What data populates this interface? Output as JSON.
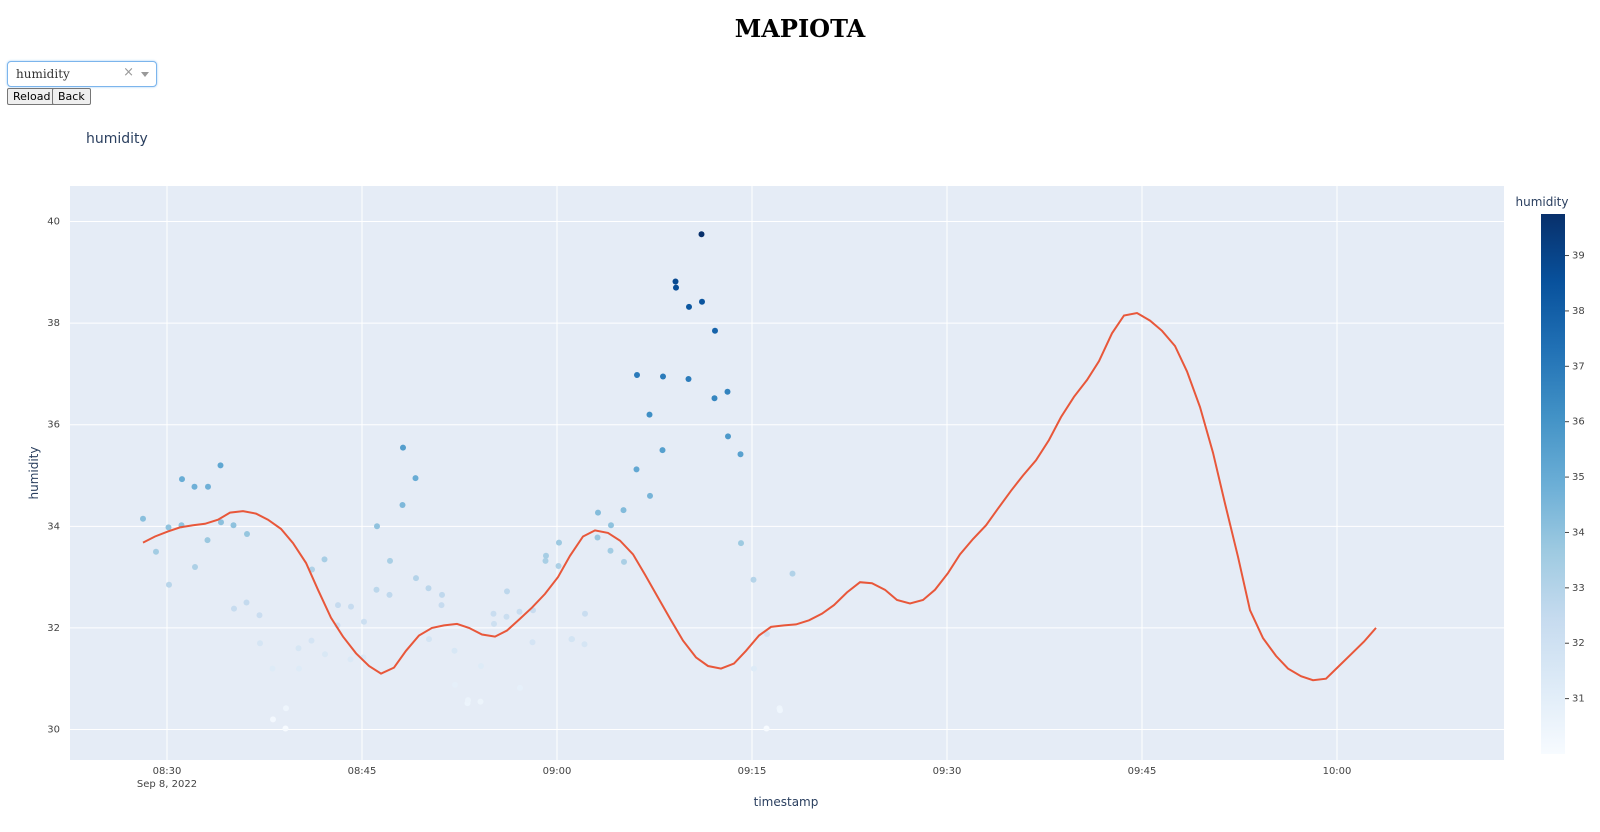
{
  "app": {
    "title": "MAPIOTA"
  },
  "controls": {
    "dropdown_value": "humidity",
    "clear_glyph": "×",
    "reload_label": "Reload",
    "back_label": "Back"
  },
  "chart_data": {
    "type": "scatter",
    "title": "humidity",
    "xlabel": "timestamp",
    "ylabel": "humidity",
    "x_ticks": [
      "08:30",
      "08:45",
      "09:00",
      "09:15",
      "09:30",
      "09:45",
      "10:00"
    ],
    "x_tick_sublabel": "Sep 8, 2022",
    "x_range_min": [
      8.0,
      8.0,
      2022,
      8,
      25.8
    ],
    "y_ticks": [
      30,
      32,
      34,
      36,
      38,
      40
    ],
    "ylim": [
      29.4,
      40.7
    ],
    "colorbar": {
      "title": "humidity",
      "ticks": [
        31,
        32,
        33,
        34,
        35,
        36,
        37,
        38,
        39
      ],
      "range": [
        30,
        39.75
      ],
      "colorscale": "Blues"
    },
    "trend_color": "#e8573a",
    "grid": true,
    "points": [
      {
        "t": "08:29",
        "y": 34.15
      },
      {
        "t": "08:30",
        "y": 33.5
      },
      {
        "t": "08:30",
        "y": 33.98
      },
      {
        "t": "08:31",
        "y": 32.85
      },
      {
        "t": "08:31",
        "y": 34.02
      },
      {
        "t": "08:32",
        "y": 34.93
      },
      {
        "t": "08:32",
        "y": 34.78
      },
      {
        "t": "08:33",
        "y": 33.2
      },
      {
        "t": "08:33",
        "y": 33.73
      },
      {
        "t": "08:34",
        "y": 34.78
      },
      {
        "t": "08:34",
        "y": 35.2
      },
      {
        "t": "08:35",
        "y": 34.08
      },
      {
        "t": "08:35",
        "y": 34.02
      },
      {
        "t": "08:36",
        "y": 32.38
      },
      {
        "t": "08:36",
        "y": 32.5
      },
      {
        "t": "08:37",
        "y": 33.85
      },
      {
        "t": "08:37",
        "y": 32.25
      },
      {
        "t": "08:38",
        "y": 31.7
      },
      {
        "t": "08:38",
        "y": 31.2
      },
      {
        "t": "08:39",
        "y": 30.2
      },
      {
        "t": "08:39",
        "y": 30.02
      },
      {
        "t": "08:40",
        "y": 30.42
      },
      {
        "t": "08:40",
        "y": 31.6
      },
      {
        "t": "08:41",
        "y": 31.2
      },
      {
        "t": "08:41",
        "y": 31.75
      },
      {
        "t": "08:42",
        "y": 33.15
      },
      {
        "t": "08:42",
        "y": 33.35
      },
      {
        "t": "08:43",
        "y": 31.48
      },
      {
        "t": "08:43",
        "y": 32.05
      },
      {
        "t": "08:44",
        "y": 32.45
      },
      {
        "t": "08:44",
        "y": 31.38
      },
      {
        "t": "08:45",
        "y": 32.42
      },
      {
        "t": "08:45",
        "y": 31.42
      },
      {
        "t": "08:46",
        "y": 32.12
      },
      {
        "t": "08:46",
        "y": 32.75
      },
      {
        "t": "08:47",
        "y": 34.0
      },
      {
        "t": "08:47",
        "y": 32.65
      },
      {
        "t": "08:48",
        "y": 33.32
      },
      {
        "t": "08:48",
        "y": 34.42
      },
      {
        "t": "08:49",
        "y": 35.55
      },
      {
        "t": "08:49",
        "y": 34.95
      },
      {
        "t": "08:50",
        "y": 32.98
      },
      {
        "t": "08:50",
        "y": 32.78
      },
      {
        "t": "08:51",
        "y": 31.78
      },
      {
        "t": "08:51",
        "y": 32.45
      },
      {
        "t": "08:52",
        "y": 32.65
      },
      {
        "t": "08:52",
        "y": 31.55
      },
      {
        "t": "08:53",
        "y": 30.88
      },
      {
        "t": "08:53",
        "y": 30.52
      },
      {
        "t": "08:54",
        "y": 30.58
      },
      {
        "t": "08:54",
        "y": 30.55
      },
      {
        "t": "08:55",
        "y": 31.25
      },
      {
        "t": "08:55",
        "y": 32.28
      },
      {
        "t": "08:56",
        "y": 32.08
      },
      {
        "t": "08:56",
        "y": 32.22
      },
      {
        "t": "08:57",
        "y": 32.72
      },
      {
        "t": "08:57",
        "y": 32.32
      },
      {
        "t": "08:58",
        "y": 30.82
      },
      {
        "t": "08:58",
        "y": 31.72
      },
      {
        "t": "08:59",
        "y": 32.35
      },
      {
        "t": "08:59",
        "y": 33.32
      },
      {
        "t": "09:00",
        "y": 33.42
      },
      {
        "t": "09:00",
        "y": 33.22
      },
      {
        "t": "09:01",
        "y": 33.68
      },
      {
        "t": "09:01",
        "y": 31.78
      },
      {
        "t": "09:02",
        "y": 31.78
      },
      {
        "t": "09:02",
        "y": 31.68
      },
      {
        "t": "09:03",
        "y": 32.28
      },
      {
        "t": "09:03",
        "y": 33.78
      },
      {
        "t": "09:04",
        "y": 34.27
      },
      {
        "t": "09:04",
        "y": 33.52
      },
      {
        "t": "09:05",
        "y": 34.02
      },
      {
        "t": "09:05",
        "y": 34.32
      },
      {
        "t": "09:06",
        "y": 33.3
      },
      {
        "t": "09:06",
        "y": 35.12
      },
      {
        "t": "09:07",
        "y": 36.98
      },
      {
        "t": "09:07",
        "y": 36.2
      },
      {
        "t": "09:08",
        "y": 34.6
      },
      {
        "t": "09:08",
        "y": 35.5
      },
      {
        "t": "09:09",
        "y": 36.95
      },
      {
        "t": "09:09",
        "y": 38.82
      },
      {
        "t": "09:10",
        "y": 38.7
      },
      {
        "t": "09:10",
        "y": 36.9
      },
      {
        "t": "09:11",
        "y": 38.32
      },
      {
        "t": "09:11",
        "y": 39.75
      },
      {
        "t": "09:12",
        "y": 38.42
      },
      {
        "t": "09:12",
        "y": 36.52
      },
      {
        "t": "09:13",
        "y": 37.85
      },
      {
        "t": "09:13",
        "y": 36.65
      },
      {
        "t": "09:14",
        "y": 35.77
      },
      {
        "t": "09:14",
        "y": 35.42
      },
      {
        "t": "09:15",
        "y": 33.67
      },
      {
        "t": "09:15",
        "y": 32.95
      },
      {
        "t": "09:16",
        "y": 31.2
      },
      {
        "t": "09:16",
        "y": 30.02
      },
      {
        "t": "09:17",
        "y": 31.88
      },
      {
        "t": "09:17",
        "y": 30.42
      },
      {
        "t": "09:18",
        "y": 30.38
      },
      {
        "t": "09:18",
        "y": 33.07
      }
    ],
    "trend": [
      [
        143,
        33.68
      ],
      [
        155,
        33.8
      ],
      [
        168,
        33.9
      ],
      [
        180,
        33.98
      ],
      [
        193,
        34.02
      ],
      [
        205,
        34.05
      ],
      [
        218,
        34.13
      ],
      [
        230,
        34.27
      ],
      [
        243,
        34.3
      ],
      [
        256,
        34.25
      ],
      [
        268,
        34.13
      ],
      [
        281,
        33.95
      ],
      [
        293,
        33.67
      ],
      [
        306,
        33.28
      ],
      [
        318,
        32.75
      ],
      [
        331,
        32.2
      ],
      [
        343,
        31.83
      ],
      [
        356,
        31.5
      ],
      [
        369,
        31.25
      ],
      [
        381,
        31.1
      ],
      [
        394,
        31.22
      ],
      [
        406,
        31.55
      ],
      [
        419,
        31.85
      ],
      [
        432,
        32.0
      ],
      [
        444,
        32.05
      ],
      [
        457,
        32.08
      ],
      [
        469,
        32.0
      ],
      [
        482,
        31.87
      ],
      [
        495,
        31.83
      ],
      [
        507,
        31.95
      ],
      [
        520,
        32.18
      ],
      [
        532,
        32.4
      ],
      [
        545,
        32.67
      ],
      [
        558,
        33.0
      ],
      [
        570,
        33.42
      ],
      [
        583,
        33.8
      ],
      [
        595,
        33.92
      ],
      [
        608,
        33.87
      ],
      [
        620,
        33.72
      ],
      [
        633,
        33.45
      ],
      [
        645,
        33.05
      ],
      [
        658,
        32.6
      ],
      [
        671,
        32.15
      ],
      [
        683,
        31.75
      ],
      [
        696,
        31.42
      ],
      [
        708,
        31.25
      ],
      [
        721,
        31.2
      ],
      [
        734,
        31.3
      ],
      [
        746,
        31.55
      ],
      [
        759,
        31.85
      ],
      [
        771,
        32.02
      ],
      [
        784,
        32.05
      ],
      [
        796,
        32.07
      ],
      [
        809,
        32.15
      ],
      [
        822,
        32.28
      ],
      [
        834,
        32.45
      ],
      [
        847,
        32.7
      ],
      [
        860,
        32.9
      ],
      [
        872,
        32.88
      ],
      [
        885,
        32.75
      ],
      [
        897,
        32.55
      ],
      [
        910,
        32.48
      ],
      [
        923,
        32.55
      ],
      [
        935,
        32.75
      ],
      [
        948,
        33.08
      ],
      [
        960,
        33.45
      ],
      [
        973,
        33.75
      ],
      [
        986,
        34.02
      ],
      [
        998,
        34.35
      ],
      [
        1011,
        34.7
      ],
      [
        1023,
        35.0
      ],
      [
        1036,
        35.3
      ],
      [
        1049,
        35.7
      ],
      [
        1061,
        36.15
      ],
      [
        1074,
        36.55
      ],
      [
        1087,
        36.88
      ],
      [
        1099,
        37.25
      ],
      [
        1112,
        37.8
      ],
      [
        1124,
        38.15
      ],
      [
        1137,
        38.2
      ],
      [
        1150,
        38.05
      ],
      [
        1162,
        37.85
      ],
      [
        1175,
        37.55
      ],
      [
        1187,
        37.05
      ],
      [
        1200,
        36.35
      ],
      [
        1213,
        35.45
      ],
      [
        1225,
        34.45
      ],
      [
        1238,
        33.4
      ],
      [
        1250,
        32.35
      ],
      [
        1263,
        31.8
      ],
      [
        1276,
        31.45
      ],
      [
        1288,
        31.2
      ],
      [
        1301,
        31.05
      ],
      [
        1313,
        30.97
      ],
      [
        1326,
        31.0
      ],
      [
        1339,
        31.25
      ],
      [
        1351,
        31.48
      ],
      [
        1364,
        31.73
      ],
      [
        1376,
        32.0
      ]
    ]
  }
}
